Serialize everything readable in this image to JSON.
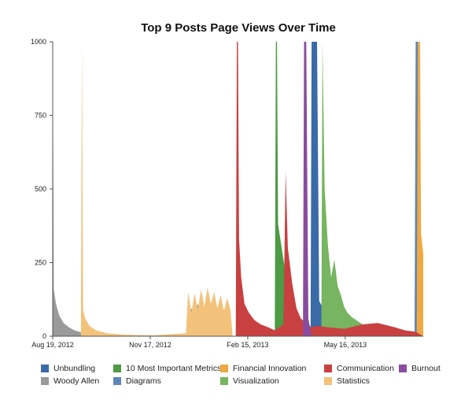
{
  "chart_data": {
    "type": "area",
    "title": "Top 9 Posts Page Views Over Time",
    "xlabel": "",
    "ylabel": "",
    "x_ticks": [
      "Aug 19, 2012",
      "Nov 17, 2012",
      "Feb 15, 2013",
      "May 16, 2013"
    ],
    "x_range": [
      "2012-08-19",
      "2013-07-27"
    ],
    "ylim": [
      0,
      1000
    ],
    "y_ticks": [
      "0",
      "250",
      "500",
      "750",
      "1000"
    ],
    "grid": false,
    "legend_position": "bottom",
    "series": [
      {
        "name": "Unbundling",
        "color": "#3a6aa8",
        "points": [
          [
            "2013-04-14",
            0
          ],
          [
            "2013-04-15",
            1000
          ],
          [
            "2013-04-20",
            1000
          ],
          [
            "2013-04-22",
            120
          ],
          [
            "2013-04-26",
            90
          ],
          [
            "2013-05-01",
            65
          ],
          [
            "2013-05-06",
            75
          ],
          [
            "2013-05-11",
            55
          ],
          [
            "2013-05-16",
            45
          ],
          [
            "2013-05-21",
            40
          ],
          [
            "2013-05-26",
            30
          ],
          [
            "2013-06-01",
            25
          ],
          [
            "2013-06-08",
            20
          ],
          [
            "2013-06-15",
            15
          ],
          [
            "2013-06-20",
            5
          ],
          [
            "2013-06-22",
            0
          ]
        ]
      },
      {
        "name": "Woody Allen",
        "color": "#9a9a9a",
        "points": [
          [
            "2012-08-19",
            1000
          ],
          [
            "2012-08-20",
            160
          ],
          [
            "2012-08-22",
            110
          ],
          [
            "2012-08-25",
            70
          ],
          [
            "2012-08-29",
            45
          ],
          [
            "2012-09-03",
            30
          ],
          [
            "2012-09-08",
            20
          ],
          [
            "2012-09-15",
            12
          ],
          [
            "2012-09-25",
            6
          ],
          [
            "2012-10-05",
            3
          ],
          [
            "2012-10-15",
            0
          ],
          [
            "2012-12-20",
            0
          ],
          [
            "2012-12-22",
            70
          ],
          [
            "2012-12-25",
            95
          ],
          [
            "2012-12-28",
            75
          ],
          [
            "2012-12-31",
            110
          ],
          [
            "2013-01-03",
            80
          ],
          [
            "2013-01-06",
            100
          ],
          [
            "2013-01-09",
            70
          ],
          [
            "2013-01-12",
            105
          ],
          [
            "2013-01-15",
            75
          ],
          [
            "2013-01-18",
            95
          ],
          [
            "2013-01-21",
            65
          ],
          [
            "2013-01-24",
            90
          ],
          [
            "2013-01-27",
            60
          ],
          [
            "2013-01-30",
            80
          ],
          [
            "2013-02-01",
            0
          ]
        ]
      },
      {
        "name": "10 Most Important Metrics",
        "color": "#4e9a45",
        "points": [
          [
            "2013-03-12",
            0
          ],
          [
            "2013-03-13",
            1000
          ],
          [
            "2013-03-14",
            1000
          ],
          [
            "2013-03-15",
            380
          ],
          [
            "2013-03-20",
            260
          ],
          [
            "2013-03-25",
            140
          ],
          [
            "2013-03-30",
            90
          ],
          [
            "2013-04-05",
            60
          ],
          [
            "2013-04-10",
            45
          ],
          [
            "2013-04-15",
            30
          ],
          [
            "2013-04-20",
            20
          ],
          [
            "2013-04-25",
            10
          ],
          [
            "2013-05-01",
            0
          ]
        ]
      },
      {
        "name": "Diagrams",
        "color": "#5b86b8",
        "points": [
          [
            "2013-07-19",
            0
          ],
          [
            "2013-07-20",
            1000
          ],
          [
            "2013-07-22",
            1000
          ],
          [
            "2013-07-23",
            200
          ],
          [
            "2013-07-25",
            120
          ],
          [
            "2013-07-26",
            80
          ],
          [
            "2013-07-27",
            0
          ]
        ]
      },
      {
        "name": "Financial Innovation",
        "color": "#f0a840",
        "points": [
          [
            "2013-07-21",
            0
          ],
          [
            "2013-07-22",
            1000
          ],
          [
            "2013-07-24",
            1000
          ],
          [
            "2013-07-25",
            350
          ],
          [
            "2013-07-27",
            280
          ]
        ]
      },
      {
        "name": "Visualization",
        "color": "#77b560",
        "points": [
          [
            "2013-04-24",
            0
          ],
          [
            "2013-04-25",
            1000
          ],
          [
            "2013-04-27",
            500
          ],
          [
            "2013-04-30",
            310
          ],
          [
            "2013-05-03",
            200
          ],
          [
            "2013-05-06",
            260
          ],
          [
            "2013-05-09",
            170
          ],
          [
            "2013-05-12",
            140
          ],
          [
            "2013-05-15",
            100
          ],
          [
            "2013-05-18",
            80
          ],
          [
            "2013-05-22",
            65
          ],
          [
            "2013-05-26",
            55
          ],
          [
            "2013-05-30",
            45
          ],
          [
            "2013-06-04",
            35
          ],
          [
            "2013-06-10",
            25
          ],
          [
            "2013-06-16",
            15
          ],
          [
            "2013-06-22",
            0
          ]
        ]
      },
      {
        "name": "Communication",
        "color": "#c94040",
        "points": [
          [
            "2013-02-04",
            0
          ],
          [
            "2013-02-05",
            1000
          ],
          [
            "2013-02-06",
            1000
          ],
          [
            "2013-02-07",
            330
          ],
          [
            "2013-02-09",
            200
          ],
          [
            "2013-02-12",
            110
          ],
          [
            "2013-02-16",
            80
          ],
          [
            "2013-02-21",
            55
          ],
          [
            "2013-02-27",
            40
          ],
          [
            "2013-03-06",
            30
          ],
          [
            "2013-03-12",
            20
          ],
          [
            "2013-03-20",
            40
          ],
          [
            "2013-03-22",
            560
          ],
          [
            "2013-03-24",
            300
          ],
          [
            "2013-03-28",
            180
          ],
          [
            "2013-04-01",
            95
          ],
          [
            "2013-04-05",
            60
          ],
          [
            "2013-04-10",
            40
          ],
          [
            "2013-04-14",
            30
          ],
          [
            "2013-04-20",
            35
          ],
          [
            "2013-05-01",
            30
          ],
          [
            "2013-05-15",
            25
          ],
          [
            "2013-06-01",
            40
          ],
          [
            "2013-06-15",
            45
          ],
          [
            "2013-07-01",
            30
          ],
          [
            "2013-07-10",
            20
          ],
          [
            "2013-07-20",
            15
          ],
          [
            "2013-07-27",
            0
          ]
        ]
      },
      {
        "name": "Statistics",
        "color": "#f3c27a",
        "points": [
          [
            "2012-09-14",
            0
          ],
          [
            "2012-09-15",
            1000
          ],
          [
            "2012-09-16",
            90
          ],
          [
            "2012-09-18",
            60
          ],
          [
            "2012-09-22",
            35
          ],
          [
            "2012-09-28",
            20
          ],
          [
            "2012-10-08",
            10
          ],
          [
            "2012-10-25",
            5
          ],
          [
            "2012-11-20",
            3
          ],
          [
            "2012-12-20",
            10
          ],
          [
            "2012-12-22",
            150
          ],
          [
            "2012-12-25",
            80
          ],
          [
            "2012-12-28",
            145
          ],
          [
            "2012-12-31",
            90
          ],
          [
            "2013-01-03",
            160
          ],
          [
            "2013-01-06",
            100
          ],
          [
            "2013-01-09",
            165
          ],
          [
            "2013-01-12",
            110
          ],
          [
            "2013-01-15",
            150
          ],
          [
            "2013-01-18",
            95
          ],
          [
            "2013-01-21",
            140
          ],
          [
            "2013-01-24",
            85
          ],
          [
            "2013-01-27",
            130
          ],
          [
            "2013-01-30",
            90
          ],
          [
            "2013-02-01",
            0
          ]
        ]
      },
      {
        "name": "Burnout",
        "color": "#8a4c9e",
        "points": [
          [
            "2013-04-07",
            0
          ],
          [
            "2013-04-08",
            1000
          ],
          [
            "2013-04-10",
            1000
          ],
          [
            "2013-04-12",
            60
          ],
          [
            "2013-04-15",
            0
          ]
        ]
      }
    ]
  },
  "legend": {
    "items": [
      {
        "label": "Unbundling",
        "color": "#3a6aa8"
      },
      {
        "label": "10 Most Important Metrics",
        "color": "#4e9a45"
      },
      {
        "label": "Financial Innovation",
        "color": "#f0a840"
      },
      {
        "label": "Communication",
        "color": "#c94040"
      },
      {
        "label": "Burnout",
        "color": "#8a4c9e"
      },
      {
        "label": "Woody Allen",
        "color": "#9a9a9a"
      },
      {
        "label": "Diagrams",
        "color": "#5b86b8"
      },
      {
        "label": "Visualization",
        "color": "#77b560"
      },
      {
        "label": "Statistics",
        "color": "#f3c27a"
      }
    ]
  }
}
